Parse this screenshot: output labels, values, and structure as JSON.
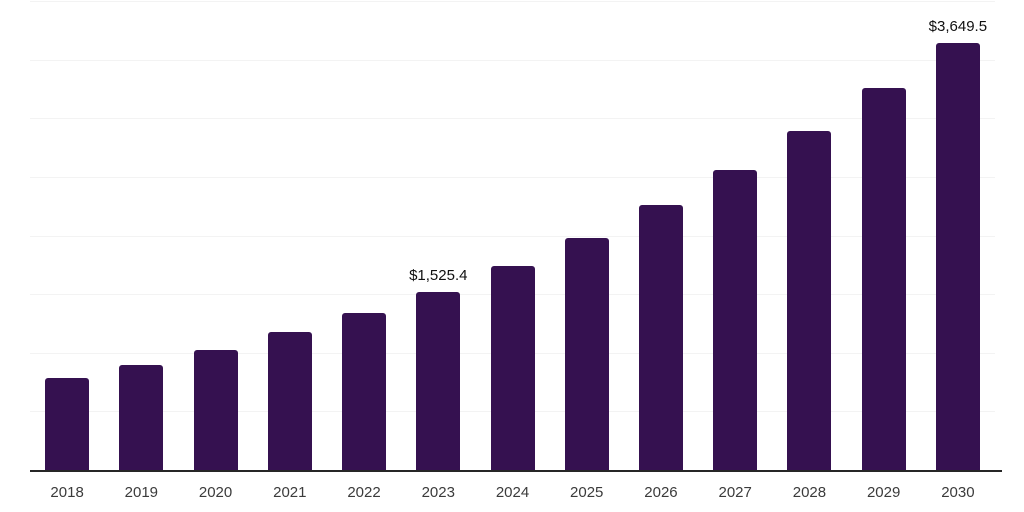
{
  "chart_data": {
    "type": "bar",
    "title": "",
    "xlabel": "",
    "ylabel": "",
    "categories": [
      "2018",
      "2019",
      "2020",
      "2021",
      "2022",
      "2023",
      "2024",
      "2025",
      "2026",
      "2027",
      "2028",
      "2029",
      "2030"
    ],
    "values": [
      790,
      900,
      1030,
      1185,
      1345,
      1525.4,
      1745,
      1990,
      2265,
      2570,
      2900,
      3270,
      3649.5
    ],
    "value_labels": [
      "",
      "",
      "",
      "",
      "",
      "$1,525.4",
      "",
      "",
      "",
      "",
      "",
      "",
      "$3,649.5"
    ],
    "ylim": [
      0,
      4000
    ],
    "gridline_step": 500,
    "grid": "horizontal, no y-axis tick labels",
    "legend_position": "none",
    "colors": {
      "bar": "#351150",
      "axis_line": "#262626",
      "gridline": "#f3f3f3",
      "value_label": "#101010",
      "tick_label": "#3b3b3b",
      "background": "#ffffff"
    }
  }
}
